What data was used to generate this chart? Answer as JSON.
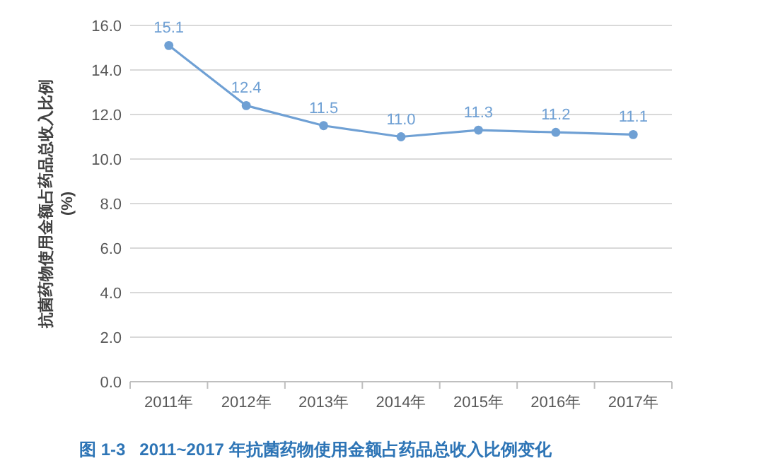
{
  "chart_data": {
    "type": "line",
    "title": "图 1-3   2011~2017 年抗菌药物使用金额占药品总收入比例变化",
    "ylabel": "抗菌药物使用金额占药品总收入比例\n(%)",
    "categories": [
      "2011年",
      "2012年",
      "2013年",
      "2014年",
      "2015年",
      "2016年",
      "2017年"
    ],
    "series": [
      {
        "color": "#6fa0d4",
        "values": [
          15.1,
          12.4,
          11.5,
          11.0,
          11.3,
          11.2,
          11.1
        ],
        "value_labels": [
          "15.1",
          "12.4",
          "11.5",
          "11.0",
          "11.3",
          "11.2",
          "11.1"
        ]
      }
    ],
    "ylim": [
      0,
      16
    ],
    "yticks": [
      {
        "value": 0,
        "label": "0.0"
      },
      {
        "value": 2,
        "label": "2.0"
      },
      {
        "value": 4,
        "label": "4.0"
      },
      {
        "value": 6,
        "label": "6.0"
      },
      {
        "value": 8,
        "label": "8.0"
      },
      {
        "value": 10,
        "label": "10.0"
      },
      {
        "value": 12,
        "label": "12.0"
      },
      {
        "value": 14,
        "label": "14.0"
      },
      {
        "value": 16,
        "label": "16.0"
      }
    ],
    "grid": "y",
    "marker": "circle",
    "line_style": "solid"
  }
}
